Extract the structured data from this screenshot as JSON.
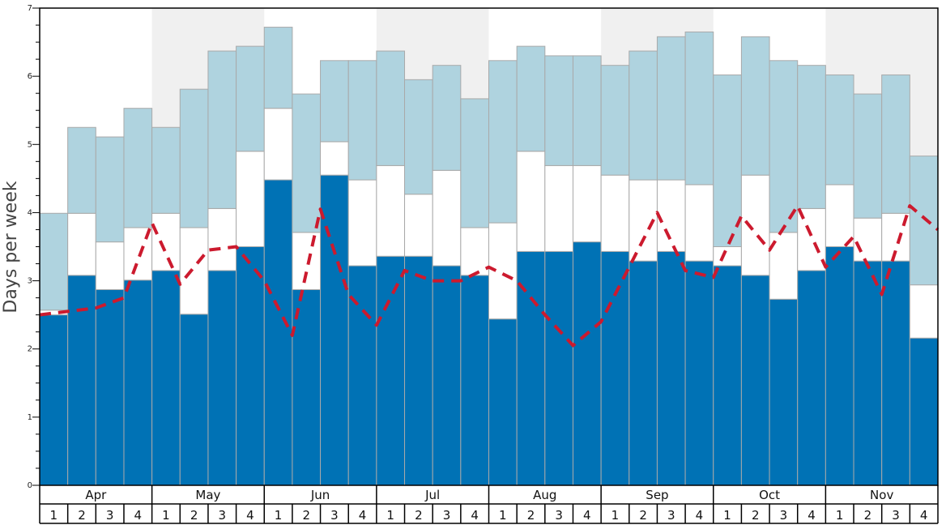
{
  "chart_data": {
    "type": "bar",
    "ylabel": "Days per week",
    "ylim": [
      0,
      7
    ],
    "yticks": [
      "0",
      "1",
      "2",
      "3",
      "4",
      "5",
      "6",
      "7"
    ],
    "months": [
      "Apr",
      "May",
      "Jun",
      "Jul",
      "Aug",
      "Sep",
      "Oct",
      "Nov"
    ],
    "weeks": [
      "1",
      "2",
      "3",
      "4"
    ],
    "shaded_months": [
      "May",
      "Jul",
      "Sep",
      "Nov"
    ],
    "grid": false,
    "series": [
      {
        "values": [
          2.5,
          3.08,
          2.87,
          3.01,
          3.15,
          2.51,
          3.15,
          3.5,
          4.48,
          2.87,
          4.55,
          3.22,
          3.36,
          3.36,
          3.22,
          3.08,
          2.44,
          3.43,
          3.43,
          3.57,
          3.43,
          3.29,
          3.43,
          3.29,
          3.22,
          3.08,
          2.73,
          3.15,
          3.5,
          3.29,
          3.29,
          2.16
        ]
      },
      {
        "values": [
          2.57,
          3.99,
          3.57,
          3.78,
          3.99,
          3.78,
          4.06,
          4.9,
          5.53,
          3.71,
          5.04,
          4.48,
          4.69,
          4.27,
          4.62,
          3.78,
          3.85,
          4.9,
          4.69,
          4.69,
          4.55,
          4.48,
          4.48,
          4.41,
          3.5,
          4.55,
          3.71,
          4.06,
          4.41,
          3.92,
          3.99,
          2.94
        ]
      },
      {
        "values": [
          3.99,
          5.25,
          5.11,
          5.53,
          5.25,
          5.81,
          6.37,
          6.44,
          6.72,
          5.74,
          6.23,
          6.23,
          6.37,
          5.95,
          6.16,
          5.67,
          6.23,
          6.44,
          6.3,
          6.3,
          6.16,
          6.37,
          6.58,
          6.65,
          6.02,
          6.58,
          6.23,
          6.16,
          6.02,
          5.74,
          6.02,
          4.83
        ]
      },
      {
        "type": "line",
        "values": [
          2.5,
          2.55,
          2.6,
          2.75,
          3.85,
          2.95,
          3.45,
          3.5,
          3.0,
          2.2,
          4.05,
          2.8,
          2.35,
          3.15,
          3.0,
          3.0,
          3.2,
          3.0,
          2.5,
          2.05,
          2.4,
          3.2,
          4.0,
          3.15,
          3.05,
          3.95,
          3.45,
          4.1,
          3.2,
          3.65,
          2.8,
          4.1,
          3.75
        ]
      }
    ],
    "colors": {
      "bar_dark": "#0072b5",
      "bar_white": "#ffffff",
      "bar_light": "#afd3df",
      "bar_outline": "#a9a9a9",
      "line": "#cc1a2e",
      "shade": "#f0f0f0",
      "axis": "#000000"
    }
  }
}
